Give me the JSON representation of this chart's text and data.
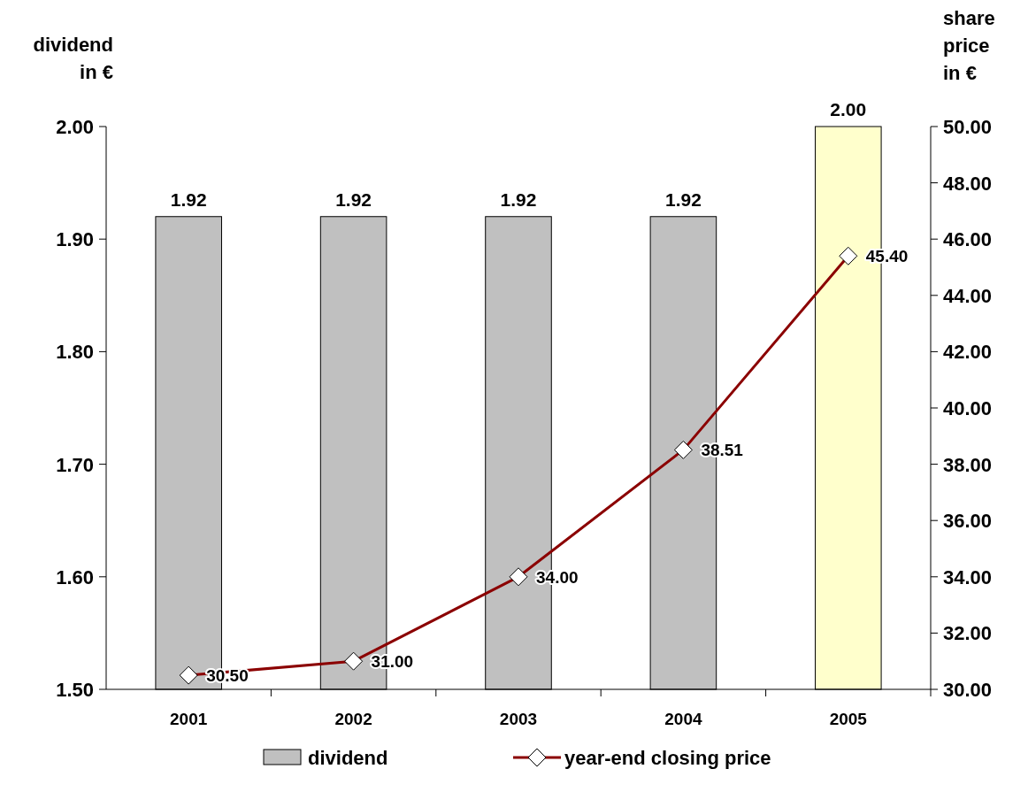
{
  "chart_data": {
    "type": "bar",
    "ylabel": "dividend in €",
    "y2label": "share price in €",
    "categories": [
      "2001",
      "2002",
      "2003",
      "2004",
      "2005"
    ],
    "series": [
      {
        "name": "dividend",
        "values": [
          1.92,
          1.92,
          1.92,
          1.92,
          2.0
        ],
        "colors": [
          "#c0c0c0",
          "#c0c0c0",
          "#c0c0c0",
          "#c0c0c0",
          "#ffffcc"
        ],
        "value_labels": [
          "1.92",
          "1.92",
          "1.92",
          "1.92",
          "2.00"
        ]
      },
      {
        "name": "year-end closing price",
        "type": "line",
        "axis": "y2",
        "color": "#8b0000",
        "marker": "diamond",
        "values": [
          30.5,
          31.0,
          34.0,
          38.51,
          45.4
        ],
        "value_labels": [
          "30.50",
          "31.00",
          "34.00",
          "38.51",
          "45.40"
        ]
      }
    ],
    "ylim": [
      1.5,
      2.0
    ],
    "yticks": [
      {
        "value": 1.5,
        "label": "1.50"
      },
      {
        "value": 1.6,
        "label": "1.60"
      },
      {
        "value": 1.7,
        "label": "1.70"
      },
      {
        "value": 1.8,
        "label": "1.80"
      },
      {
        "value": 1.9,
        "label": "1.90"
      },
      {
        "value": 2.0,
        "label": "2.00"
      }
    ],
    "y2lim": [
      30,
      50
    ],
    "y2ticks": [
      {
        "value": 30,
        "label": "30.00"
      },
      {
        "value": 32,
        "label": "32.00"
      },
      {
        "value": 34,
        "label": "34.00"
      },
      {
        "value": 36,
        "label": "36.00"
      },
      {
        "value": 38,
        "label": "38.00"
      },
      {
        "value": 40,
        "label": "40.00"
      },
      {
        "value": 42,
        "label": "42.00"
      },
      {
        "value": 44,
        "label": "44.00"
      },
      {
        "value": 46,
        "label": "46.00"
      },
      {
        "value": 48,
        "label": "48.00"
      },
      {
        "value": 50,
        "label": "50.00"
      }
    ],
    "legend": "bottom",
    "grid": false
  }
}
